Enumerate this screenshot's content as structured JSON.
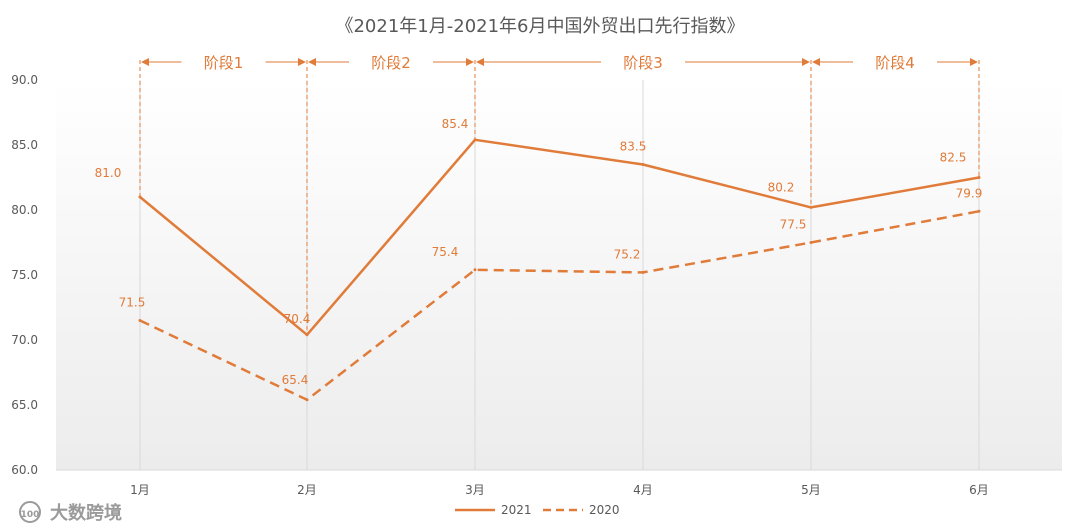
{
  "chart_data": {
    "type": "line",
    "title": "《2021年1月-2021年6月中国外贸出口先行指数》",
    "categories": [
      "1月",
      "2月",
      "3月",
      "4月",
      "5月",
      "6月"
    ],
    "series": [
      {
        "name": "2021",
        "values": [
          81.0,
          70.4,
          85.4,
          83.5,
          80.2,
          82.5
        ],
        "labels": [
          "81.0",
          "70.4",
          "85.4",
          "83.5",
          "80.2",
          "82.5"
        ],
        "style": "solid",
        "color": "#E07B39"
      },
      {
        "name": "2020",
        "values": [
          71.5,
          65.4,
          75.4,
          75.2,
          77.5,
          79.9
        ],
        "labels": [
          "71.5",
          "65.4",
          "75.4",
          "75.2",
          "77.5",
          "79.9"
        ],
        "style": "dashed",
        "color": "#E07B39"
      }
    ],
    "ylim": [
      60.0,
      90.0
    ],
    "yticks": [
      "60.0",
      "65.0",
      "70.0",
      "75.0",
      "80.0",
      "85.0",
      "90.0"
    ],
    "grid": "vertical",
    "legend": "bottom",
    "stages": [
      {
        "label": "阶段1",
        "from": 0,
        "to": 1
      },
      {
        "label": "阶段2",
        "from": 1,
        "to": 2
      },
      {
        "label": "阶段3",
        "from": 2,
        "to": 4
      },
      {
        "label": "阶段4",
        "from": 4,
        "to": 5
      }
    ]
  },
  "watermark": {
    "text": "大数跨境",
    "logo_text": "100"
  },
  "colors": {
    "accent": "#E07B39",
    "text": "#595959",
    "grid": "#D9D9D9"
  }
}
